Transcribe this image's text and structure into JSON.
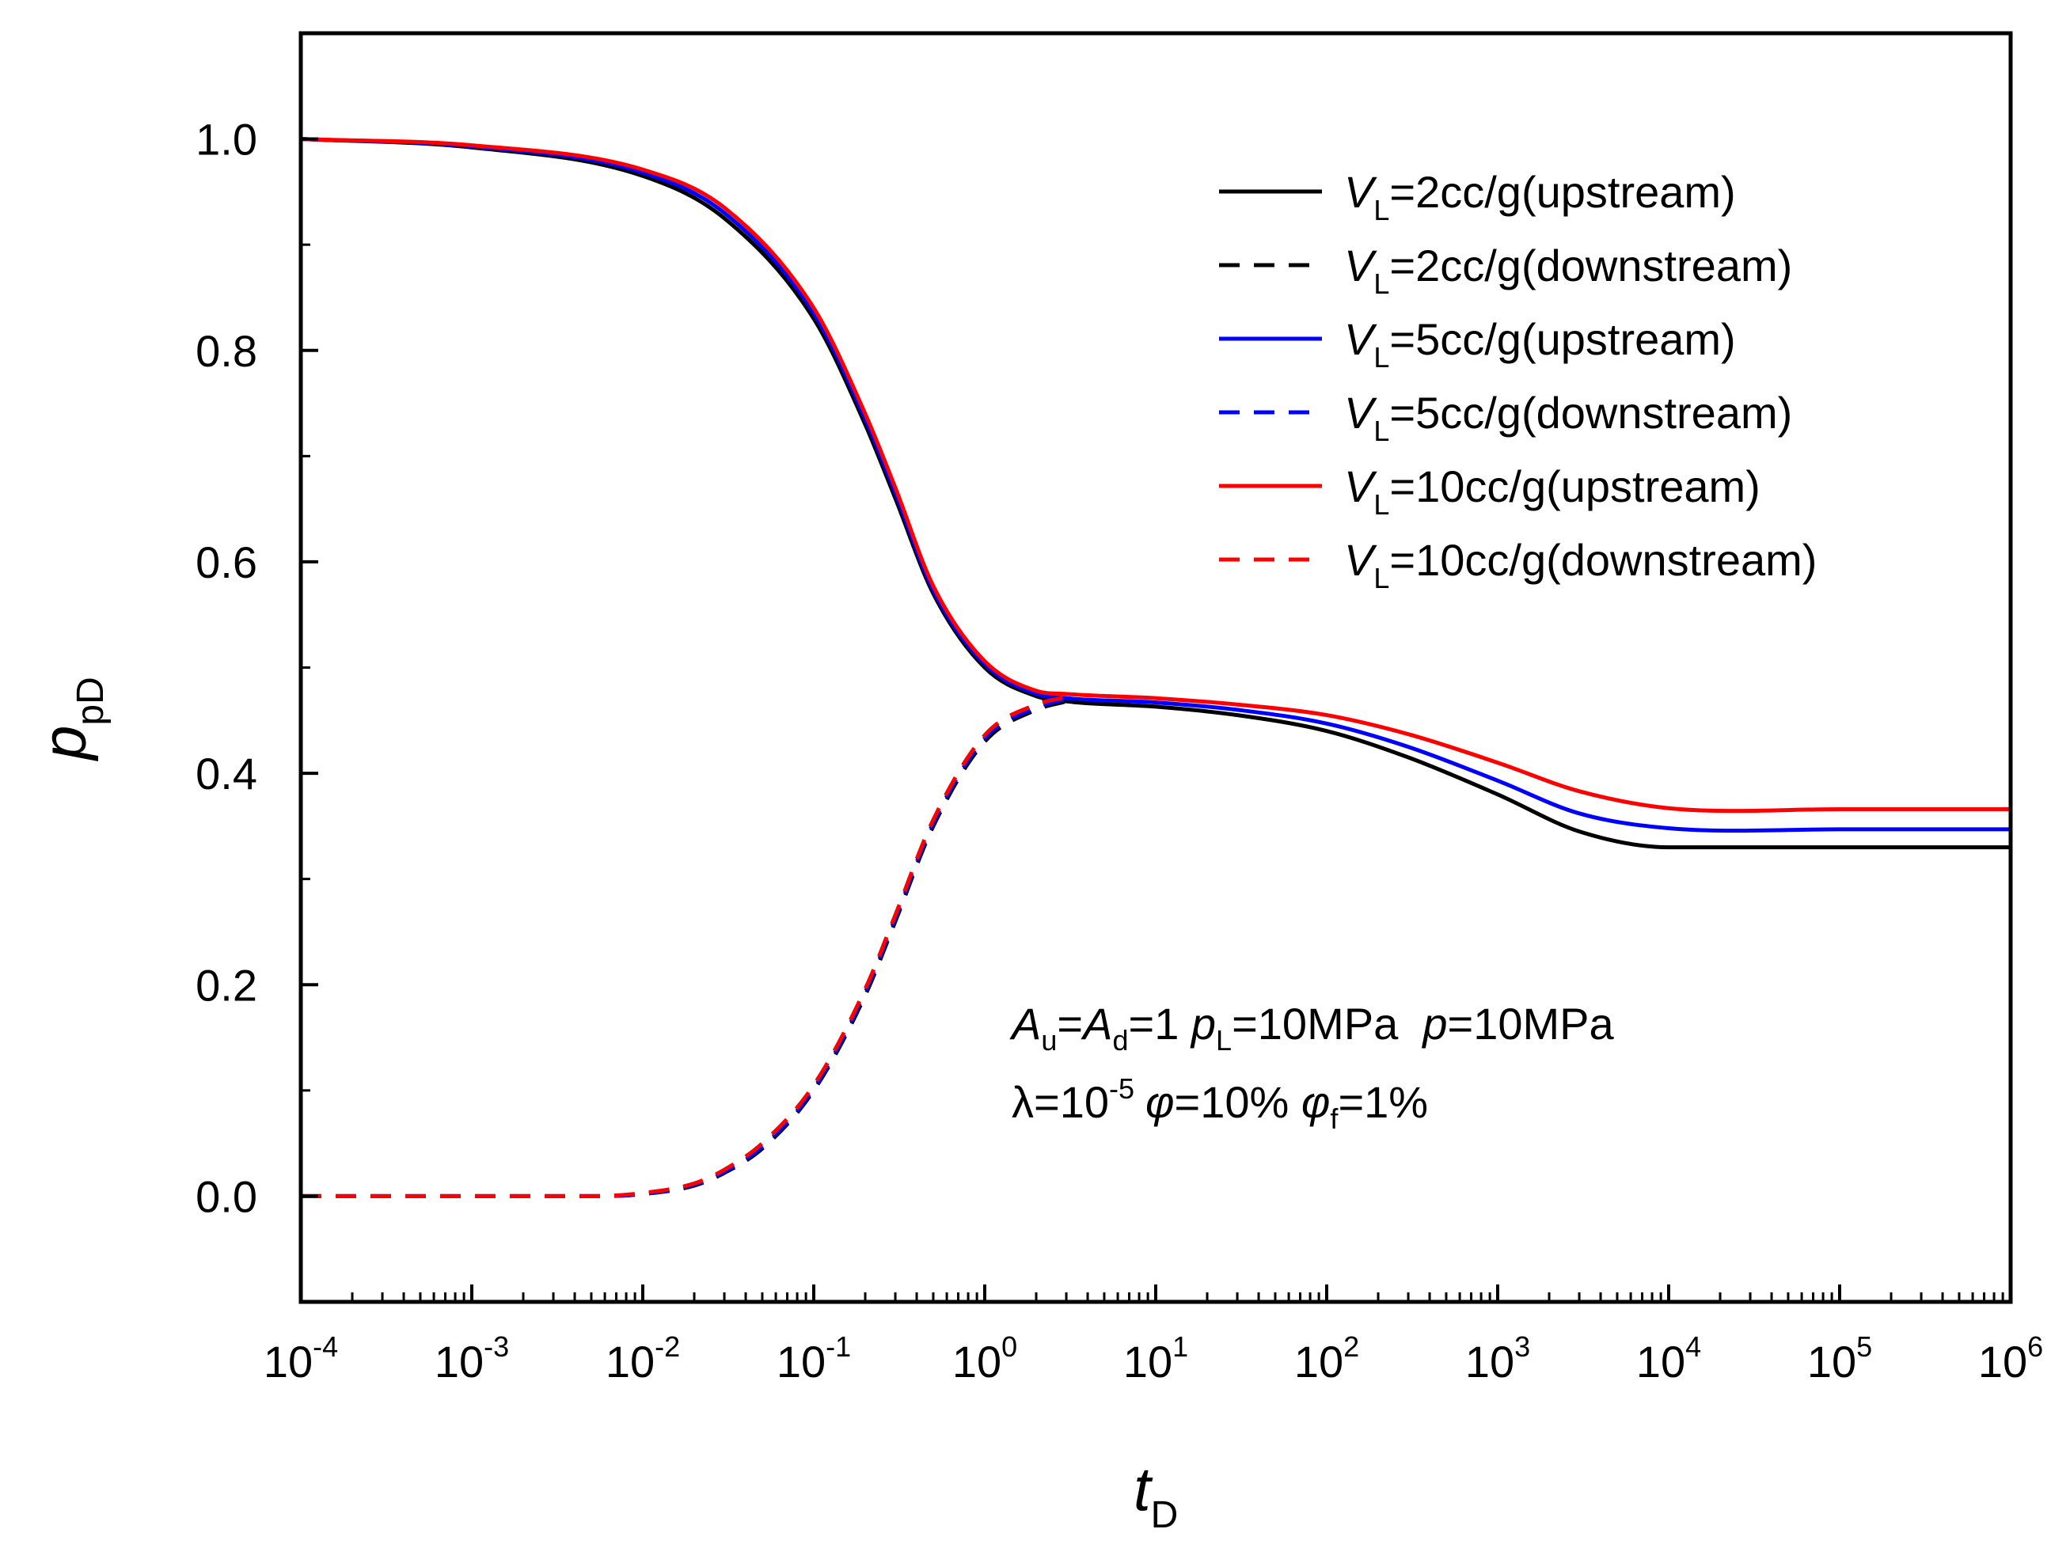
{
  "chart_data": {
    "type": "line",
    "xscale": "log",
    "xlim": [
      0.0001,
      1000000
    ],
    "ylim": [
      -0.1,
      1.1
    ],
    "x_ticks": [
      {
        "base": "10",
        "exp": "-4",
        "value": 0.0001
      },
      {
        "base": "10",
        "exp": "-3",
        "value": 0.001
      },
      {
        "base": "10",
        "exp": "-2",
        "value": 0.01
      },
      {
        "base": "10",
        "exp": "-1",
        "value": 0.1
      },
      {
        "base": "10",
        "exp": "0",
        "value": 1
      },
      {
        "base": "10",
        "exp": "1",
        "value": 10
      },
      {
        "base": "10",
        "exp": "2",
        "value": 100
      },
      {
        "base": "10",
        "exp": "3",
        "value": 1000
      },
      {
        "base": "10",
        "exp": "4",
        "value": 10000
      },
      {
        "base": "10",
        "exp": "5",
        "value": 100000
      },
      {
        "base": "10",
        "exp": "6",
        "value": 1000000
      }
    ],
    "y_ticks": [
      {
        "label": "0.0",
        "value": 0.0
      },
      {
        "label": "0.2",
        "value": 0.2
      },
      {
        "label": "0.4",
        "value": 0.4
      },
      {
        "label": "0.6",
        "value": 0.6
      },
      {
        "label": "0.8",
        "value": 0.8
      },
      {
        "label": "1.0",
        "value": 1.0
      }
    ],
    "xlabel": {
      "main": "t",
      "sub": "D"
    },
    "ylabel": {
      "main": "p",
      "sub": "pD"
    },
    "legend_position": "top-right",
    "series": [
      {
        "name": "V_L=2cc/g(upstream)",
        "legend": {
          "v": "V",
          "sub": "L",
          "text": "=2cc/g(upstream)"
        },
        "color": "#000000",
        "dash": "solid",
        "x": [
          0.0001,
          0.001,
          0.01,
          0.03,
          0.1,
          0.2,
          0.3,
          0.5,
          1,
          2,
          3,
          10,
          30,
          100,
          300,
          1000,
          3000,
          10000,
          100000,
          1000000
        ],
        "y": [
          1.0,
          0.992,
          0.965,
          0.925,
          0.83,
          0.73,
          0.66,
          0.57,
          0.5,
          0.473,
          0.468,
          0.463,
          0.455,
          0.44,
          0.415,
          0.38,
          0.345,
          0.33,
          0.33,
          0.33
        ]
      },
      {
        "name": "V_L=2cc/g(downstream)",
        "legend": {
          "v": "V",
          "sub": "L",
          "text": "=2cc/g(downstream)"
        },
        "color": "#000000",
        "dash": "dashed",
        "x": [
          0.0001,
          0.001,
          0.005,
          0.01,
          0.02,
          0.03,
          0.05,
          0.1,
          0.2,
          0.3,
          0.5,
          1,
          2,
          3
        ],
        "y": [
          0.0,
          0.0,
          0.0,
          0.002,
          0.01,
          0.022,
          0.045,
          0.1,
          0.19,
          0.26,
          0.35,
          0.43,
          0.46,
          0.468
        ]
      },
      {
        "name": "V_L=5cc/g(upstream)",
        "legend": {
          "v": "V",
          "sub": "L",
          "text": "=5cc/g(upstream)"
        },
        "color": "#0000ff",
        "dash": "solid",
        "x": [
          0.0001,
          0.001,
          0.01,
          0.03,
          0.1,
          0.2,
          0.3,
          0.5,
          1,
          2,
          3,
          10,
          30,
          100,
          300,
          1000,
          3000,
          10000,
          100000,
          1000000
        ],
        "y": [
          1.0,
          0.993,
          0.968,
          0.93,
          0.835,
          0.735,
          0.665,
          0.573,
          0.503,
          0.475,
          0.471,
          0.467,
          0.46,
          0.447,
          0.425,
          0.393,
          0.362,
          0.348,
          0.347,
          0.347
        ]
      },
      {
        "name": "V_L=5cc/g(downstream)",
        "legend": {
          "v": "V",
          "sub": "L",
          "text": "=5cc/g(downstream)"
        },
        "color": "#0000ff",
        "dash": "dashed",
        "x": [
          0.0001,
          0.001,
          0.005,
          0.01,
          0.02,
          0.03,
          0.05,
          0.1,
          0.2,
          0.3,
          0.5,
          1,
          2,
          3
        ],
        "y": [
          0.0,
          0.0,
          0.0,
          0.002,
          0.011,
          0.023,
          0.047,
          0.102,
          0.193,
          0.263,
          0.353,
          0.433,
          0.462,
          0.47
        ]
      },
      {
        "name": "V_L=10cc/g(upstream)",
        "legend": {
          "v": "V",
          "sub": "L",
          "text": "=10cc/g(upstream)"
        },
        "color": "#ff0000",
        "dash": "solid",
        "x": [
          0.0001,
          0.001,
          0.01,
          0.03,
          0.1,
          0.2,
          0.3,
          0.5,
          1,
          2,
          3,
          10,
          30,
          100,
          300,
          1000,
          3000,
          10000,
          100000,
          1000000
        ],
        "y": [
          1.0,
          0.994,
          0.971,
          0.935,
          0.84,
          0.74,
          0.67,
          0.577,
          0.506,
          0.478,
          0.475,
          0.471,
          0.465,
          0.455,
          0.437,
          0.41,
          0.383,
          0.367,
          0.366,
          0.366
        ]
      },
      {
        "name": "V_L=10cc/g(downstream)",
        "legend": {
          "v": "V",
          "sub": "L",
          "text": "=10cc/g(downstream)"
        },
        "color": "#ff0000",
        "dash": "dashed",
        "x": [
          0.0001,
          0.001,
          0.005,
          0.01,
          0.02,
          0.03,
          0.05,
          0.1,
          0.2,
          0.3,
          0.5,
          1,
          2,
          3
        ],
        "y": [
          0.0,
          0.0,
          0.0,
          0.003,
          0.012,
          0.025,
          0.05,
          0.105,
          0.196,
          0.266,
          0.356,
          0.436,
          0.465,
          0.472
        ]
      }
    ],
    "annotations": {
      "line1": {
        "a": "A",
        "u": "u",
        "eq1": "=",
        "a2": "A",
        "d": "d",
        "eq2": "=1 ",
        "p": "p",
        "L": "L",
        "val1": "=10MPa  ",
        "p2": "p",
        "val2": "=10MPa"
      },
      "line2": {
        "lambda": "λ=10",
        "exp": "-5",
        "phi": "φ",
        "val1": "=10% ",
        "phi2": "φ",
        "f": "f",
        "val2": "=1%"
      }
    }
  }
}
